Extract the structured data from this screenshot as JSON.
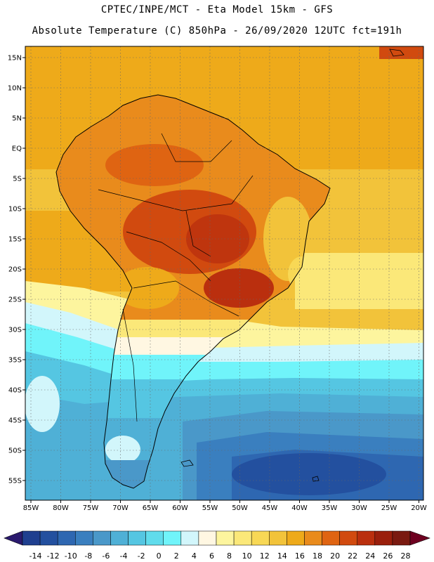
{
  "header": {
    "line1": "CPTEC/INPE/MCT -  Eta Model 15km - GFS",
    "line2": "Absolute Temperature (C) 850hPa - 26/09/2020 12UTC fct=191h"
  },
  "axes": {
    "lat_ticks": [
      {
        "label": "15N",
        "lat": 15
      },
      {
        "label": "10N",
        "lat": 10
      },
      {
        "label": "5N",
        "lat": 5
      },
      {
        "label": "EQ",
        "lat": 0
      },
      {
        "label": "5S",
        "lat": -5
      },
      {
        "label": "10S",
        "lat": -10
      },
      {
        "label": "15S",
        "lat": -15
      },
      {
        "label": "20S",
        "lat": -20
      },
      {
        "label": "25S",
        "lat": -25
      },
      {
        "label": "30S",
        "lat": -30
      },
      {
        "label": "35S",
        "lat": -35
      },
      {
        "label": "40S",
        "lat": -40
      },
      {
        "label": "45S",
        "lat": -45
      },
      {
        "label": "50S",
        "lat": -50
      },
      {
        "label": "55S",
        "lat": -55
      }
    ],
    "lon_ticks": [
      {
        "label": "85W",
        "lon": -85
      },
      {
        "label": "80W",
        "lon": -80
      },
      {
        "label": "75W",
        "lon": -75
      },
      {
        "label": "70W",
        "lon": -70
      },
      {
        "label": "65W",
        "lon": -65
      },
      {
        "label": "60W",
        "lon": -60
      },
      {
        "label": "55W",
        "lon": -55
      },
      {
        "label": "50W",
        "lon": -50
      },
      {
        "label": "45W",
        "lon": -45
      },
      {
        "label": "40W",
        "lon": -40
      },
      {
        "label": "35W",
        "lon": -35
      },
      {
        "label": "30W",
        "lon": -30
      },
      {
        "label": "25W",
        "lon": -25
      },
      {
        "label": "20W",
        "lon": -20
      }
    ]
  },
  "colorbar": {
    "colors": [
      "#1f3f8f",
      "#23509f",
      "#2e67b1",
      "#3a7fbf",
      "#4a98c9",
      "#4fb0d6",
      "#55c6e2",
      "#60dcec",
      "#70f4fa",
      "#d2f6fb",
      "#fff7e2",
      "#fdf59e",
      "#fbe879",
      "#f8d855",
      "#f2c33a",
      "#eeaa1a",
      "#e98b1c",
      "#df6412",
      "#d14a0f",
      "#ba2f0e",
      "#9a1f0c",
      "#7a1a10"
    ],
    "arrow_low": "#2a1a6e",
    "arrow_high": "#6e0020",
    "labels": [
      "-14",
      "-12",
      "-10",
      "-8",
      "-6",
      "-4",
      "-2",
      "0",
      "2",
      "4",
      "6",
      "8",
      "10",
      "12",
      "14",
      "16",
      "18",
      "20",
      "22",
      "24",
      "26",
      "28"
    ]
  }
}
